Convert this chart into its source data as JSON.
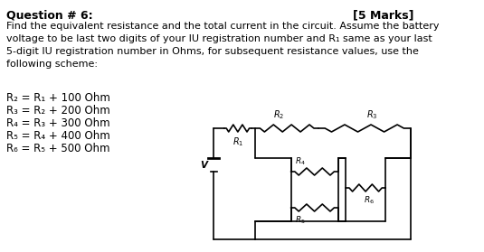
{
  "title_left": "Question # 6:",
  "title_right": "[5 Marks]",
  "body_text": "Find the equivalent resistance and the total current in the circuit. Assume the battery\nvoltage to be last two digits of your IU registration number and R₁ same as your last\n5-digit IU registration number in Ohms, for subsequent resistance values, use the\nfollowing scheme:",
  "scheme_lines": [
    "R₂ = R₁ + 100 Ohm",
    "R₃ = R₂ + 200 Ohm",
    "R₄ = R₃ + 300 Ohm",
    "R₅ = R₄ + 400 Ohm",
    "R₆ = R₅ + 500 Ohm"
  ],
  "bg_color": "#ffffff",
  "text_color": "#000000",
  "font_size_title": 9,
  "font_size_body": 8,
  "font_size_scheme": 8.5,
  "resistor_color": "#000000",
  "line_color": "#000000"
}
